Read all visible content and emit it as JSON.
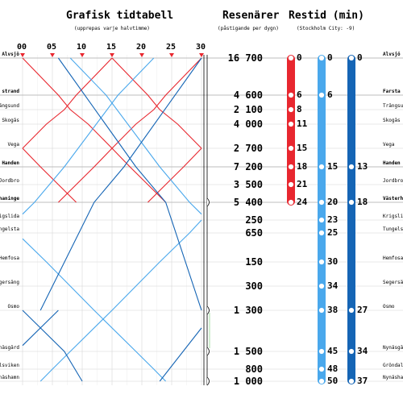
{
  "header": {
    "graph_title": "Grafisk tidtabell",
    "graph_subtitle": "(upprepas varje halvtimme)",
    "passengers_title": "Resenärer",
    "passengers_subtitle": "(påstigande per dygn)",
    "traveltime_title": "Restid (min)",
    "traveltime_subtitle": "(Stockholm City: -9)"
  },
  "time_ticks": [
    "00",
    "05",
    "10",
    "15",
    "20",
    "25",
    "30"
  ],
  "stations": [
    {
      "left": "Älvsjö",
      "right": "Älvsjö",
      "passengers": "16 700",
      "red": "0",
      "light": "0",
      "dark": "0",
      "major": true
    },
    {
      "left": "strand",
      "right": "Farsta",
      "passengers": "4 600",
      "red": "6",
      "light": "6",
      "dark": "",
      "major": true
    },
    {
      "left": "Trångsund",
      "right": "Trångsu",
      "passengers": "2 100",
      "red": "8",
      "light": "",
      "dark": "",
      "major": false
    },
    {
      "left": "Skogås",
      "right": "Skogås",
      "passengers": "4 000",
      "red": "11",
      "light": "",
      "dark": "",
      "major": false
    },
    {
      "left": "Vega",
      "right": "Vega",
      "passengers": "2 700",
      "red": "15",
      "light": "",
      "dark": "",
      "major": false
    },
    {
      "left": "Handen",
      "right": "Handen",
      "passengers": "7 200",
      "red": "18",
      "light": "15",
      "dark": "13",
      "major": true
    },
    {
      "left": "Jordbro",
      "right": "Jordbro",
      "passengers": "3 500",
      "red": "21",
      "light": "",
      "dark": "",
      "major": false
    },
    {
      "left": "haninge",
      "right": "Västerh",
      "passengers": "5 400",
      "red": "24",
      "light": "20",
      "dark": "18",
      "major": true
    },
    {
      "left": "Krigslida",
      "right": "Krigsli",
      "passengers": "250",
      "red": "",
      "light": "23",
      "dark": "",
      "major": false
    },
    {
      "left": "Tungelsta",
      "right": "Tungelst",
      "passengers": "650",
      "red": "",
      "light": "25",
      "dark": "",
      "major": false
    },
    {
      "left": "Hemfosa",
      "right": "Hemfosa",
      "passengers": "150",
      "red": "",
      "light": "30",
      "dark": "",
      "major": false
    },
    {
      "left": "Segersäng",
      "right": "Segersä",
      "passengers": "300",
      "red": "",
      "light": "34",
      "dark": "",
      "major": false
    },
    {
      "left": "Ösmo",
      "right": "Ösmo",
      "passengers": "1 300",
      "red": "",
      "light": "38",
      "dark": "27",
      "major": false
    },
    {
      "left": "Nynäsgård",
      "right": "Nynäsgå",
      "passengers": "1 500",
      "red": "",
      "light": "45",
      "dark": "34",
      "major": false
    },
    {
      "left": "Gröndalsviken",
      "right": "Gröndal",
      "passengers": "800",
      "red": "",
      "light": "48",
      "dark": "",
      "major": false
    },
    {
      "left": "Nynäshamn",
      "right": "Nynäsha",
      "passengers": "1 000",
      "red": "",
      "light": "50",
      "dark": "37",
      "major": false
    }
  ],
  "colors": {
    "red": "#e8272f",
    "light": "#4aa8ec",
    "dark": "#1565b5",
    "grid": "#d7d7d7"
  },
  "chart_data": {
    "type": "line",
    "x_unit": "minutes",
    "xlim": [
      0,
      30
    ],
    "series": [
      {
        "color": "red",
        "trips": [
          [
            0,
            0
          ],
          [
            6,
            6
          ],
          [
            8,
            8
          ],
          [
            11,
            11
          ],
          [
            15,
            15
          ],
          [
            18,
            18
          ],
          [
            21,
            21
          ],
          [
            24,
            24
          ]
        ]
      },
      {
        "color": "red",
        "trips": [
          [
            15,
            0
          ],
          [
            21,
            6
          ],
          [
            23,
            8
          ],
          [
            26,
            11
          ],
          [
            30,
            15
          ]
        ]
      },
      {
        "color": "red",
        "trips": [
          [
            0,
            15
          ],
          [
            3,
            18
          ],
          [
            6,
            21
          ],
          [
            9,
            24
          ]
        ]
      },
      {
        "color": "red",
        "trips": [
          [
            30,
            0
          ],
          [
            24,
            6
          ],
          [
            22,
            8
          ],
          [
            19,
            11
          ],
          [
            15,
            15
          ],
          [
            12,
            18
          ],
          [
            9,
            21
          ],
          [
            6,
            24
          ]
        ]
      },
      {
        "color": "red",
        "trips": [
          [
            15,
            0
          ],
          [
            9,
            6
          ],
          [
            7,
            8
          ],
          [
            4,
            11
          ],
          [
            0,
            15
          ]
        ]
      },
      {
        "color": "red",
        "trips": [
          [
            30,
            15
          ],
          [
            27,
            18
          ],
          [
            24,
            21
          ],
          [
            21,
            24
          ]
        ]
      },
      {
        "color": "light",
        "trips": [
          [
            8,
            0
          ],
          [
            14,
            6
          ],
          [
            23,
            15
          ],
          [
            28,
            20
          ],
          [
            30,
            22
          ]
        ]
      },
      {
        "color": "light",
        "trips": [
          [
            0,
            26
          ],
          [
            4,
            30
          ],
          [
            8,
            34
          ],
          [
            12,
            38
          ],
          [
            19,
            45
          ],
          [
            22,
            48
          ],
          [
            24,
            50
          ]
        ]
      },
      {
        "color": "light",
        "trips": [
          [
            22,
            0
          ],
          [
            16,
            6
          ],
          [
            7,
            15
          ],
          [
            2,
            20
          ],
          [
            0,
            22
          ]
        ]
      },
      {
        "color": "light",
        "trips": [
          [
            30,
            23
          ],
          [
            28,
            25
          ],
          [
            23,
            30
          ],
          [
            19,
            34
          ],
          [
            15,
            38
          ],
          [
            8,
            45
          ],
          [
            5,
            48
          ],
          [
            3,
            50
          ]
        ]
      },
      {
        "color": "dark",
        "trips": [
          [
            6,
            0
          ],
          [
            19,
            13
          ],
          [
            24,
            18
          ],
          [
            30,
            27
          ]
        ]
      },
      {
        "color": "dark",
        "trips": [
          [
            0,
            27
          ],
          [
            7,
            34
          ],
          [
            10,
            37
          ]
        ]
      },
      {
        "color": "dark",
        "trips": [
          [
            30,
            0
          ],
          [
            17,
            13
          ],
          [
            12,
            18
          ],
          [
            3,
            27
          ]
        ]
      },
      {
        "color": "dark",
        "trips": [
          [
            6,
            27
          ],
          [
            0,
            33
          ]
        ]
      },
      {
        "color": "dark",
        "trips": [
          [
            30,
            30
          ],
          [
            23,
            37
          ]
        ]
      }
    ]
  }
}
